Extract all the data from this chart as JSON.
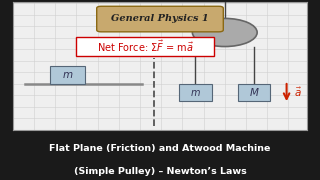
{
  "bg_color": "#1a1a1a",
  "panel_bg": "#efefef",
  "panel_border": "#999999",
  "grid_color": "#d0d0d0",
  "title_text": "General Physics 1",
  "title_bg": "#c8a96e",
  "title_border": "#8b6914",
  "formula_color": "#cc0000",
  "formula_box_color": "#cc0000",
  "box_fill": "#b0c8d8",
  "box_edge": "#556677",
  "pulley_fill": "#aaaaaa",
  "pulley_edge": "#666666",
  "rope_color": "#444444",
  "arrow_color": "#cc2200",
  "dashed_color": "#555555",
  "surface_color": "#888888",
  "caption_bg": "#1e1e1e",
  "caption_text_color": "#ffffff",
  "caption_line1": "Flat Plane (Friction) and Atwood Machine",
  "caption_line2": "(Simple Pulley) – Newton’s Laws",
  "left_box_label": "m",
  "right_box_m_label": "m",
  "right_box_M_label": "M",
  "accel_label": "$\\vec{a}$"
}
